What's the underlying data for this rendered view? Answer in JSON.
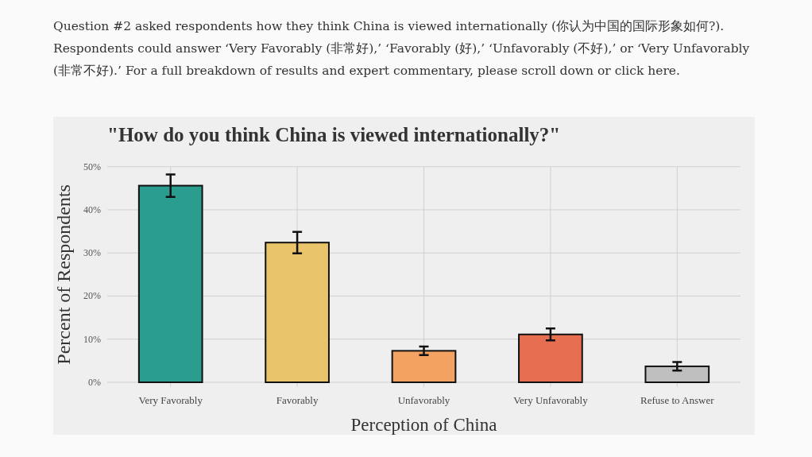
{
  "chart_data": {
    "type": "bar",
    "title": "\"How do you think China is viewed internationally?\"",
    "annotations": [
      "Question #2 asked respondents how they think China is viewed internationally (你认为中国的国际形象如何?). Respondents could answer ‘Very Favorably (非常好),’ ‘Favorably (好),’ ‘Unfavorably (不好),’ or ‘Very Unfavorably (非常不好).’ For a full breakdown of results and expert commentary, please scroll down or click here."
    ],
    "xlabel": "Perception of China",
    "ylabel": "Percent of Respondents",
    "categories": [
      "Very Favorably",
      "Favorably",
      "Unfavorably",
      "Very Unfavorably",
      "Refuse to Answer"
    ],
    "values": [
      45.6,
      32.4,
      7.3,
      11.1,
      3.7
    ],
    "errors": [
      2.6,
      2.5,
      1.0,
      1.4,
      1.0
    ],
    "colors": [
      "#2a9d8f",
      "#e9c46a",
      "#f4a261",
      "#e76f51",
      "#bfbfbf"
    ],
    "ylim": [
      0,
      50
    ],
    "yticks": [
      {
        "value": 0,
        "label": "0%"
      },
      {
        "value": 10,
        "label": "10%"
      },
      {
        "value": 20,
        "label": "20%"
      },
      {
        "value": 30,
        "label": "30%"
      },
      {
        "value": 40,
        "label": "40%"
      },
      {
        "value": 50,
        "label": "50%"
      }
    ],
    "grid": true
  }
}
